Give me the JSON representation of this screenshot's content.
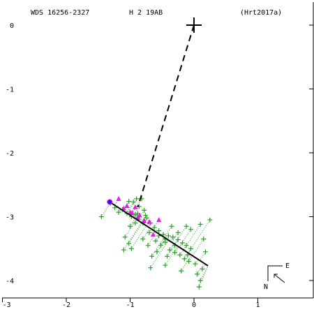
{
  "header": {
    "system": "WDS 16256-2327",
    "component": "H 2  19AB",
    "reference": "(Hrt2017a)"
  },
  "orientation": {
    "east_label": "E",
    "north_label": "N"
  },
  "chart_data": {
    "type": "scatter",
    "title": "WDS 16256-2327   H 2  19AB   (Hrt2017a)",
    "xlabel": "",
    "ylabel": "",
    "xlim": [
      -3.0,
      1.9
    ],
    "ylim": [
      -4.35,
      0.3
    ],
    "x_ticks": [
      -3,
      -2,
      -1,
      0,
      1
    ],
    "y_ticks": [
      0,
      -1,
      -2,
      -3,
      -4
    ],
    "grid": false,
    "colors": {
      "axes": "#000000",
      "micrometric": "#22a022",
      "speckle": "#e020e0",
      "latest": "#2020e0",
      "orbit": "#000000"
    },
    "primary": {
      "x": 0.0,
      "y": 0.0
    },
    "orbit_arc": {
      "from": [
        -1.32,
        -2.77
      ],
      "to": [
        0.22,
        -3.77
      ]
    },
    "node_line": {
      "from": [
        0.0,
        0.0
      ],
      "to": [
        -0.88,
        -2.85
      ]
    },
    "micrometric_points": [
      {
        "x": -1.45,
        "y": -3.0
      },
      {
        "x": -1.31,
        "y": -2.79
      },
      {
        "x": -1.24,
        "y": -2.86
      },
      {
        "x": -1.18,
        "y": -2.93
      },
      {
        "x": -1.12,
        "y": -2.89
      },
      {
        "x": -1.05,
        "y": -2.95
      },
      {
        "x": -0.98,
        "y": -3.0
      },
      {
        "x": -0.92,
        "y": -2.97
      },
      {
        "x": -0.86,
        "y": -3.04
      },
      {
        "x": -0.8,
        "y": -3.1
      },
      {
        "x": -0.95,
        "y": -2.77
      },
      {
        "x": -0.9,
        "y": -2.72
      },
      {
        "x": -0.82,
        "y": -2.72
      },
      {
        "x": -0.86,
        "y": -2.84
      },
      {
        "x": -0.78,
        "y": -2.9
      },
      {
        "x": -1.02,
        "y": -2.76
      },
      {
        "x": -0.74,
        "y": -3.02
      },
      {
        "x": -0.68,
        "y": -3.1
      },
      {
        "x": -0.62,
        "y": -3.17
      },
      {
        "x": -0.55,
        "y": -3.22
      },
      {
        "x": -0.48,
        "y": -3.28
      },
      {
        "x": -0.4,
        "y": -3.3
      },
      {
        "x": -0.33,
        "y": -3.32
      },
      {
        "x": -0.25,
        "y": -3.36
      },
      {
        "x": -0.18,
        "y": -3.41
      },
      {
        "x": -0.12,
        "y": -3.45
      },
      {
        "x": -0.05,
        "y": -3.5
      },
      {
        "x": -0.6,
        "y": -3.38
      },
      {
        "x": -0.52,
        "y": -3.45
      },
      {
        "x": -0.45,
        "y": -3.4
      },
      {
        "x": -0.38,
        "y": -3.52
      },
      {
        "x": -0.3,
        "y": -3.56
      },
      {
        "x": -0.22,
        "y": -3.6
      },
      {
        "x": -0.15,
        "y": -3.66
      },
      {
        "x": -0.08,
        "y": -3.7
      },
      {
        "x": 0.02,
        "y": -3.74
      },
      {
        "x": -0.72,
        "y": -3.45
      },
      {
        "x": -0.66,
        "y": -3.62
      },
      {
        "x": -0.58,
        "y": -3.55
      },
      {
        "x": -0.42,
        "y": -3.62
      },
      {
        "x": -0.68,
        "y": -3.8
      },
      {
        "x": -0.45,
        "y": -3.76
      },
      {
        "x": -0.2,
        "y": -3.85
      },
      {
        "x": 0.05,
        "y": -3.9
      },
      {
        "x": 0.1,
        "y": -4.0
      },
      {
        "x": 0.08,
        "y": -4.1
      },
      {
        "x": 0.13,
        "y": -3.82
      },
      {
        "x": -1.0,
        "y": -3.15
      },
      {
        "x": -1.08,
        "y": -3.32
      },
      {
        "x": -1.02,
        "y": -3.42
      },
      {
        "x": -1.1,
        "y": -3.52
      },
      {
        "x": -0.98,
        "y": -3.5
      },
      {
        "x": -0.8,
        "y": -3.35
      },
      {
        "x": -0.7,
        "y": -3.25
      },
      {
        "x": 0.25,
        "y": -3.05
      },
      {
        "x": 0.1,
        "y": -3.12
      },
      {
        "x": 0.15,
        "y": -3.35
      },
      {
        "x": -0.05,
        "y": -3.2
      },
      {
        "x": -0.12,
        "y": -3.15
      },
      {
        "x": -0.25,
        "y": -3.25
      },
      {
        "x": -0.35,
        "y": -3.15
      },
      {
        "x": -0.45,
        "y": -3.35
      },
      {
        "x": -0.55,
        "y": -3.3
      },
      {
        "x": -0.3,
        "y": -3.45
      },
      {
        "x": -0.1,
        "y": -3.6
      },
      {
        "x": 0.18,
        "y": -3.55
      },
      {
        "x": -0.88,
        "y": -2.95
      },
      {
        "x": -0.92,
        "y": -3.1
      },
      {
        "x": -0.76,
        "y": -2.98
      }
    ],
    "speckle_points": [
      {
        "x": -1.18,
        "y": -2.72
      },
      {
        "x": -1.1,
        "y": -2.87
      },
      {
        "x": -1.0,
        "y": -2.93
      },
      {
        "x": -0.92,
        "y": -2.85
      },
      {
        "x": -0.85,
        "y": -2.98
      },
      {
        "x": -0.78,
        "y": -3.06
      },
      {
        "x": -0.7,
        "y": -3.08
      },
      {
        "x": -0.64,
        "y": -3.28
      },
      {
        "x": -0.55,
        "y": -3.05
      },
      {
        "x": -1.05,
        "y": -2.83
      },
      {
        "x": -0.97,
        "y": -2.94
      },
      {
        "x": -0.88,
        "y": -3.01
      }
    ],
    "latest_point": {
      "x": -1.32,
      "y": -2.77
    }
  }
}
